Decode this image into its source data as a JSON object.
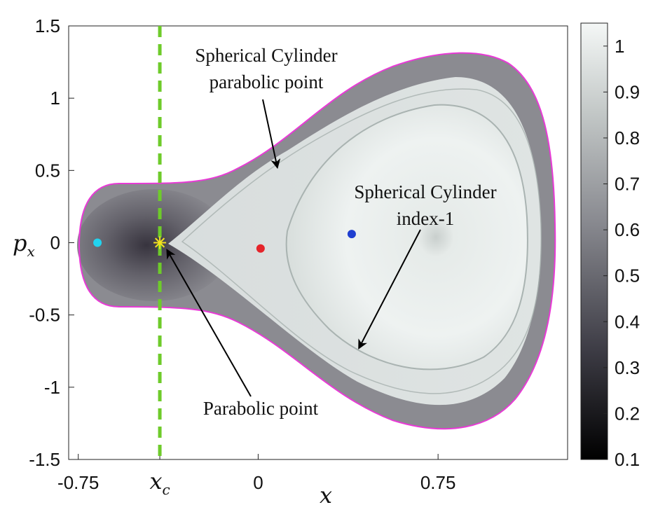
{
  "chart_data": {
    "type": "heatmap",
    "title": "",
    "xlabel": "x",
    "ylabel": "p",
    "ylabel_sub": "x",
    "xlim": [
      -0.79,
      1.29
    ],
    "ylim": [
      -1.5,
      1.5
    ],
    "x_ticks": [
      {
        "value": -0.75,
        "label": "-0.75"
      },
      {
        "value": -0.41,
        "label": "x",
        "sub": "c"
      },
      {
        "value": 0,
        "label": "0"
      },
      {
        "value": 0.75,
        "label": "0.75"
      }
    ],
    "y_ticks": [
      {
        "value": 1.5,
        "label": "1.5"
      },
      {
        "value": 1,
        "label": "1"
      },
      {
        "value": 0.5,
        "label": "0.5"
      },
      {
        "value": 0,
        "label": "0"
      },
      {
        "value": -0.5,
        "label": "-0.5"
      },
      {
        "value": -1,
        "label": "-1"
      },
      {
        "value": -1.5,
        "label": "-1.5"
      }
    ],
    "colorbar": {
      "range": [
        0.1,
        1.05
      ],
      "ticks": [
        {
          "value": 1,
          "label": "1"
        },
        {
          "value": 0.9,
          "label": "0.9"
        },
        {
          "value": 0.8,
          "label": "0.8"
        },
        {
          "value": 0.7,
          "label": "0.7"
        },
        {
          "value": 0.6,
          "label": "0.6"
        },
        {
          "value": 0.5,
          "label": "0.5"
        },
        {
          "value": 0.4,
          "label": "0.4"
        },
        {
          "value": 0.3,
          "label": "0.3"
        },
        {
          "value": 0.2,
          "label": "0.2"
        },
        {
          "value": 0.1,
          "label": "0.1"
        }
      ],
      "colormap": "gray"
    },
    "boundary_color": "#e83ad6",
    "critical_line": {
      "x": -0.41,
      "color": "#6ecb2a",
      "style": "dashed"
    },
    "points": [
      {
        "x": -0.67,
        "y": 0.0,
        "color": "#22d3ee"
      },
      {
        "x": 0.01,
        "y": -0.04,
        "color": "#e5242a"
      },
      {
        "x": 0.39,
        "y": 0.06,
        "color": "#1f3fd0"
      },
      {
        "x": -0.41,
        "y": 0.0,
        "color": "#f2e21f",
        "marker": "star"
      }
    ],
    "annotations": [
      {
        "lines": [
          "Spherical Cylinder",
          "parabolic point"
        ],
        "arrow_to": {
          "x": 0.08,
          "y": 0.52
        }
      },
      {
        "lines": [
          "Spherical Cylinder",
          "index-1"
        ],
        "arrow_to": {
          "x": 0.42,
          "y": -0.73
        }
      },
      {
        "lines": [
          "Parabolic point"
        ],
        "arrow_to": {
          "x": -0.38,
          "y": -0.05
        }
      }
    ]
  }
}
